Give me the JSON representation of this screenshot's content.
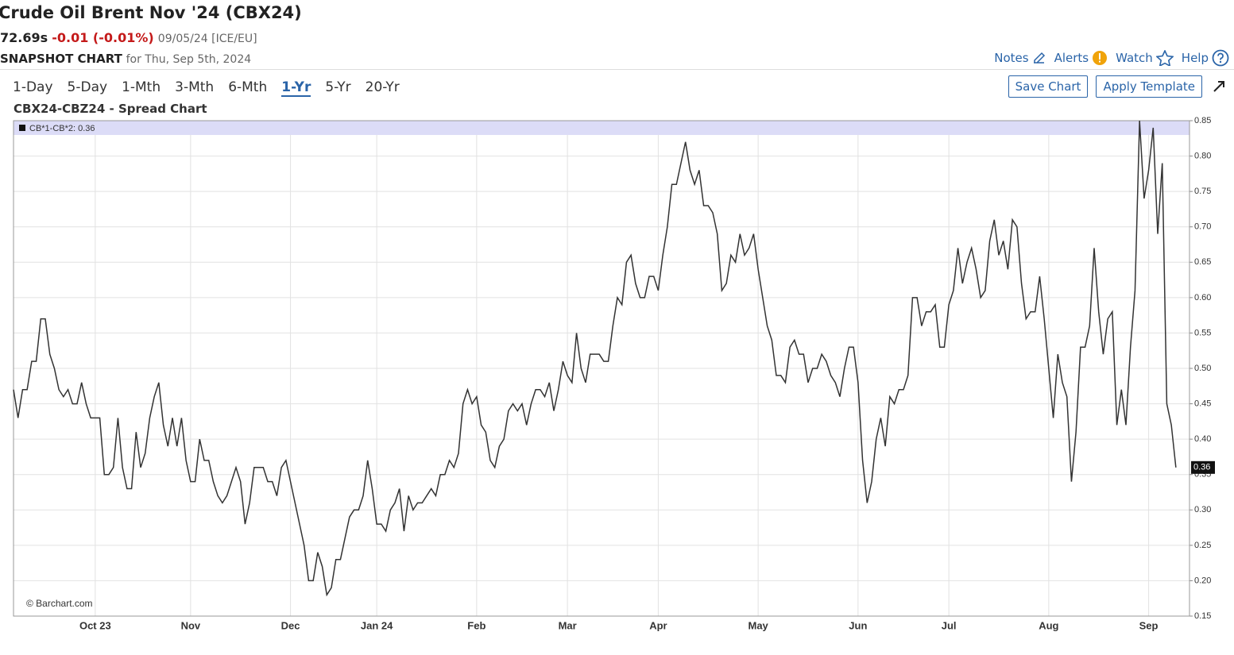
{
  "header": {
    "title": "Crude Oil Brent Nov '24 (CBX24)",
    "price": "72.69s",
    "change": "-0.01 (-0.01%)",
    "date": "09/05/24 [ICE/EU]",
    "snapshot": "SNAPSHOT CHART",
    "snapshot_date": "for Thu, Sep 5th, 2024"
  },
  "links": [
    "Notes",
    "Alerts",
    "Watch",
    "Help"
  ],
  "periods": [
    "1-Day",
    "5-Day",
    "1-Mth",
    "3-Mth",
    "6-Mth",
    "1-Yr",
    "5-Yr",
    "20-Yr"
  ],
  "active_period": 5,
  "buttons": [
    "Save Chart",
    "Apply Template"
  ],
  "chart_data": {
    "type": "line",
    "title": "CBX24-CBZ24 - Spread Chart",
    "legend": "CB*1-CB*2: 0.36",
    "last_value_label": "0.36",
    "credit": "© Barchart.com",
    "color": "#333333",
    "grid": true,
    "xlim": [
      0,
      259
    ],
    "xticks": [
      {
        "value": 18,
        "label": "Oct 23"
      },
      {
        "value": 39,
        "label": "Nov"
      },
      {
        "value": 61,
        "label": "Dec"
      },
      {
        "value": 80,
        "label": "Jan 24"
      },
      {
        "value": 102,
        "label": "Feb"
      },
      {
        "value": 122,
        "label": "Mar"
      },
      {
        "value": 142,
        "label": "Apr"
      },
      {
        "value": 164,
        "label": "May"
      },
      {
        "value": 186,
        "label": "Jun"
      },
      {
        "value": 206,
        "label": "Jul"
      },
      {
        "value": 228,
        "label": "Aug"
      },
      {
        "value": 250,
        "label": "Sep"
      }
    ],
    "ylim": [
      0.15,
      0.85
    ],
    "yticks": [
      0.15,
      {
        "value": 0.2,
        "label": "0.20"
      },
      0.25,
      {
        "value": 0.3,
        "label": "0.30"
      },
      0.35,
      {
        "value": 0.4,
        "label": "0.40"
      },
      0.45,
      {
        "value": 0.5,
        "label": "0.50"
      },
      0.55,
      {
        "value": 0.6,
        "label": "0.60"
      },
      0.65,
      {
        "value": 0.7,
        "label": "0.70"
      },
      0.75,
      {
        "value": 0.8,
        "label": "0.80"
      },
      0.85
    ],
    "values": [
      0.47,
      0.43,
      0.47,
      0.47,
      0.51,
      0.51,
      0.57,
      0.57,
      0.52,
      0.5,
      0.47,
      0.46,
      0.47,
      0.45,
      0.45,
      0.48,
      0.45,
      0.43,
      0.43,
      0.43,
      0.35,
      0.35,
      0.36,
      0.43,
      0.36,
      0.33,
      0.33,
      0.41,
      0.36,
      0.38,
      0.43,
      0.46,
      0.48,
      0.42,
      0.39,
      0.43,
      0.39,
      0.43,
      0.37,
      0.34,
      0.34,
      0.4,
      0.37,
      0.37,
      0.34,
      0.32,
      0.31,
      0.32,
      0.34,
      0.36,
      0.34,
      0.28,
      0.31,
      0.36,
      0.36,
      0.36,
      0.34,
      0.34,
      0.32,
      0.36,
      0.37,
      0.34,
      0.31,
      0.28,
      0.25,
      0.2,
      0.2,
      0.24,
      0.22,
      0.18,
      0.19,
      0.23,
      0.23,
      0.26,
      0.29,
      0.3,
      0.3,
      0.32,
      0.37,
      0.33,
      0.28,
      0.28,
      0.27,
      0.3,
      0.31,
      0.33,
      0.27,
      0.32,
      0.3,
      0.31,
      0.31,
      0.32,
      0.33,
      0.32,
      0.35,
      0.35,
      0.37,
      0.36,
      0.38,
      0.45,
      0.47,
      0.45,
      0.46,
      0.42,
      0.41,
      0.37,
      0.36,
      0.39,
      0.4,
      0.44,
      0.45,
      0.44,
      0.45,
      0.42,
      0.45,
      0.47,
      0.47,
      0.46,
      0.48,
      0.44,
      0.47,
      0.51,
      0.49,
      0.48,
      0.55,
      0.5,
      0.48,
      0.52,
      0.52,
      0.52,
      0.51,
      0.51,
      0.56,
      0.6,
      0.59,
      0.65,
      0.66,
      0.62,
      0.6,
      0.6,
      0.63,
      0.63,
      0.61,
      0.66,
      0.7,
      0.76,
      0.76,
      0.79,
      0.82,
      0.78,
      0.76,
      0.78,
      0.73,
      0.73,
      0.72,
      0.69,
      0.61,
      0.62,
      0.66,
      0.65,
      0.69,
      0.66,
      0.67,
      0.69,
      0.64,
      0.6,
      0.56,
      0.54,
      0.49,
      0.49,
      0.48,
      0.53,
      0.54,
      0.52,
      0.52,
      0.48,
      0.5,
      0.5,
      0.52,
      0.51,
      0.49,
      0.48,
      0.46,
      0.5,
      0.53,
      0.53,
      0.48,
      0.37,
      0.31,
      0.34,
      0.4,
      0.43,
      0.39,
      0.46,
      0.45,
      0.47,
      0.47,
      0.49,
      0.6,
      0.6,
      0.56,
      0.58,
      0.58,
      0.59,
      0.53,
      0.53,
      0.59,
      0.61,
      0.67,
      0.62,
      0.65,
      0.67,
      0.64,
      0.6,
      0.61,
      0.68,
      0.71,
      0.66,
      0.68,
      0.64,
      0.71,
      0.7,
      0.62,
      0.57,
      0.58,
      0.58,
      0.63,
      0.57,
      0.5,
      0.43,
      0.52,
      0.48,
      0.46,
      0.34,
      0.41,
      0.53,
      0.53,
      0.56,
      0.67,
      0.58,
      0.52,
      0.57,
      0.58,
      0.42,
      0.47,
      0.42,
      0.53,
      0.61,
      0.85,
      0.74,
      0.78,
      0.84,
      0.69,
      0.79,
      0.45,
      0.42,
      0.36
    ]
  }
}
